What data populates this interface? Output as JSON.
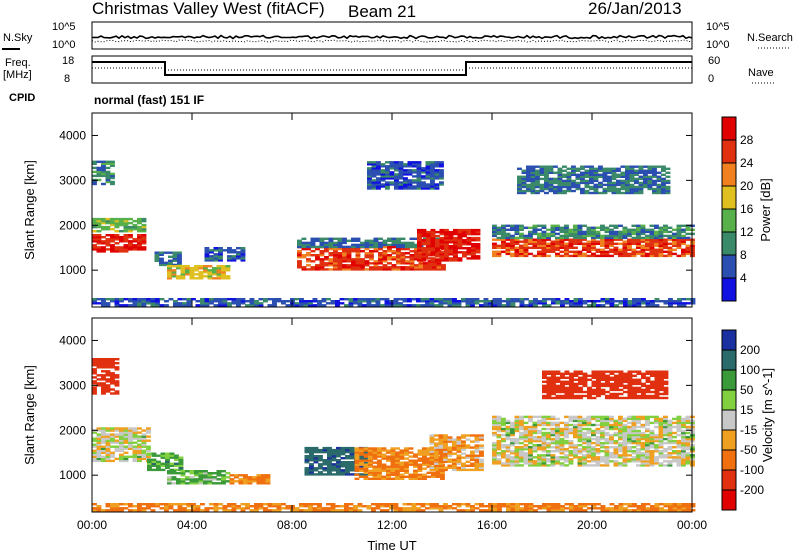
{
  "header": {
    "title": "Christmas Valley West (fitACF)",
    "beam": "Beam 21",
    "date": "26/Jan/2013"
  },
  "status_panels": {
    "nsky_label": "N.Sky",
    "nsearch_label": "N.Search",
    "noise_ticks": [
      "10^5",
      "10^0"
    ],
    "freq_label_line1": "Freq.",
    "freq_label_line2": "[MHz]",
    "freq_ticks": [
      "18",
      "8"
    ],
    "nave_label": "Nave",
    "nave_ticks": [
      "60",
      "0"
    ],
    "cpid_label": "CPID",
    "cpid_text": "normal (fast) 151 IF"
  },
  "chart_data": [
    {
      "type": "heatmap",
      "panel": "power",
      "xlabel": "Time UT",
      "ylabel": "Slant Range [km]",
      "x_ticks": [
        "00:00",
        "04:00",
        "08:00",
        "12:00",
        "16:00",
        "20:00",
        "00:00"
      ],
      "x_range_hours": [
        0,
        24
      ],
      "y_ticks": [
        1000,
        2000,
        3000,
        4000
      ],
      "y_range_km": [
        180,
        4500
      ],
      "colorbar": {
        "label": "Power [dB]",
        "ticks": [
          4,
          8,
          12,
          16,
          20,
          24,
          28
        ],
        "range": [
          0,
          32
        ],
        "colors": [
          "#1010e0",
          "#2a4fb0",
          "#3a8a6a",
          "#58b04a",
          "#e0c020",
          "#f08020",
          "#e03010",
          "#e00000"
        ]
      },
      "echo_regions": [
        {
          "t": [
            0.0,
            2.0
          ],
          "range": [
            1400,
            1800
          ],
          "level": 28
        },
        {
          "t": [
            0.0,
            2.0
          ],
          "range": [
            1850,
            2150
          ],
          "level": 14
        },
        {
          "t": [
            0.0,
            0.8
          ],
          "range": [
            2900,
            3400
          ],
          "level": 10
        },
        {
          "t": [
            2.5,
            3.5
          ],
          "range": [
            1100,
            1400
          ],
          "level": 8
        },
        {
          "t": [
            3.0,
            5.5
          ],
          "range": [
            800,
            1100
          ],
          "level": 18
        },
        {
          "t": [
            4.5,
            6.0
          ],
          "range": [
            1200,
            1500
          ],
          "level": 6
        },
        {
          "t": [
            8.2,
            14.0
          ],
          "range": [
            1000,
            1500
          ],
          "level": 26
        },
        {
          "t": [
            8.2,
            14.0
          ],
          "range": [
            1500,
            1700
          ],
          "level": 8
        },
        {
          "t": [
            13.0,
            15.5
          ],
          "range": [
            1200,
            1900
          ],
          "level": 28
        },
        {
          "t": [
            11.0,
            14.0
          ],
          "range": [
            2800,
            3400
          ],
          "level": 6
        },
        {
          "t": [
            16.0,
            24.0
          ],
          "range": [
            1300,
            1700
          ],
          "level": 26
        },
        {
          "t": [
            16.0,
            24.0
          ],
          "range": [
            1700,
            2000
          ],
          "level": 10
        },
        {
          "t": [
            17.0,
            23.0
          ],
          "range": [
            2700,
            3300
          ],
          "level": 8
        },
        {
          "t": [
            0.0,
            24.0
          ],
          "range": [
            200,
            380
          ],
          "level": 6
        }
      ]
    },
    {
      "type": "heatmap",
      "panel": "velocity",
      "xlabel": "Time UT",
      "ylabel": "Slant Range [km]",
      "x_ticks": [
        "00:00",
        "04:00",
        "08:00",
        "12:00",
        "16:00",
        "20:00",
        "00:00"
      ],
      "x_range_hours": [
        0,
        24
      ],
      "y_ticks": [
        1000,
        2000,
        3000,
        4000
      ],
      "y_range_km": [
        180,
        4500
      ],
      "colorbar": {
        "label": "Velocity [m s^-1]",
        "ticks": [
          200,
          100,
          50,
          15,
          -15,
          -50,
          -100,
          -200
        ],
        "colors": [
          "#1a2fa0",
          "#2a6a6a",
          "#3a9a3a",
          "#80d040",
          "#c8c8c8",
          "#f0a020",
          "#f07010",
          "#e03010",
          "#e00000"
        ]
      },
      "echo_regions": [
        {
          "t": [
            0.0,
            2.2
          ],
          "range": [
            1300,
            2050
          ],
          "value": 0
        },
        {
          "t": [
            0.0,
            1.0
          ],
          "range": [
            2800,
            3600
          ],
          "value": -150
        },
        {
          "t": [
            2.2,
            3.5
          ],
          "range": [
            1100,
            1500
          ],
          "value": 50
        },
        {
          "t": [
            3.0,
            5.5
          ],
          "range": [
            800,
            1100
          ],
          "value": 40
        },
        {
          "t": [
            5.5,
            7.0
          ],
          "range": [
            800,
            1000
          ],
          "value": -60
        },
        {
          "t": [
            8.5,
            11.0
          ],
          "range": [
            1000,
            1600
          ],
          "value": 130
        },
        {
          "t": [
            10.5,
            14.0
          ],
          "range": [
            900,
            1600
          ],
          "value": -60
        },
        {
          "t": [
            13.5,
            15.5
          ],
          "range": [
            1100,
            1900
          ],
          "value": -40
        },
        {
          "t": [
            16.0,
            24.0
          ],
          "range": [
            1200,
            2300
          ],
          "value": 0
        },
        {
          "t": [
            18.0,
            23.0
          ],
          "range": [
            2700,
            3300
          ],
          "value": -150
        },
        {
          "t": [
            0.0,
            24.0
          ],
          "range": [
            200,
            360
          ],
          "value": -60
        }
      ]
    }
  ]
}
